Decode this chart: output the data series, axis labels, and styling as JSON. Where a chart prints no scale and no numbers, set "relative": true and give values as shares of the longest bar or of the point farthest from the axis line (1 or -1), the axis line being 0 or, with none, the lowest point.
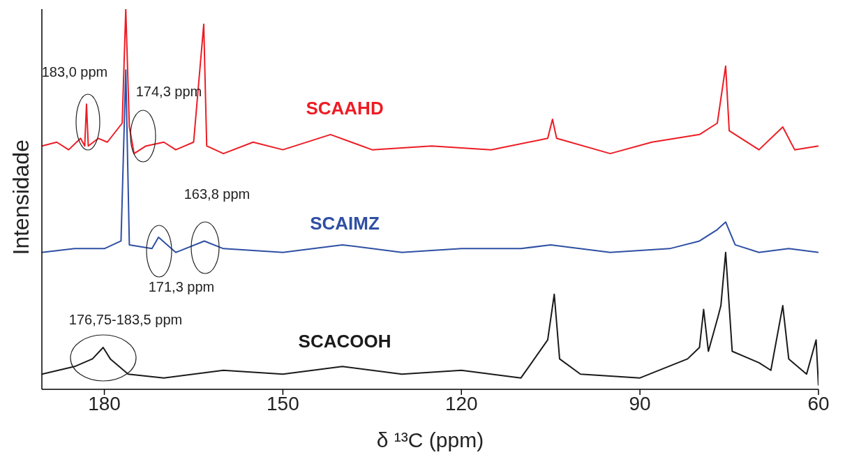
{
  "chart_data": {
    "type": "line",
    "xlabel": "δ ¹³C (ppm)",
    "ylabel": "Intensidade",
    "relative": true,
    "xlim": [
      190.5,
      60
    ],
    "xticks": [
      180,
      150,
      120,
      90,
      60
    ],
    "grid": false,
    "legend": false,
    "marker": "none",
    "line_style": "solid",
    "series": [
      {
        "name": "SCAAHD",
        "color": "#ed1c24",
        "x": [
          190.5,
          188,
          186,
          184,
          183.3,
          183.0,
          182.7,
          181,
          179.5,
          177,
          176.4,
          175.8,
          175,
          173,
          170,
          168,
          165,
          163.3,
          162.8,
          160,
          155,
          150,
          142,
          135,
          125,
          115,
          105.5,
          104.7,
          104,
          95,
          88,
          80,
          77,
          75.6,
          75,
          70,
          66,
          64,
          60
        ],
        "values": [
          0.64,
          0.65,
          0.63,
          0.66,
          0.64,
          0.75,
          0.64,
          0.66,
          0.65,
          0.7,
          1.0,
          0.69,
          0.62,
          0.64,
          0.65,
          0.63,
          0.65,
          0.96,
          0.64,
          0.62,
          0.65,
          0.63,
          0.67,
          0.63,
          0.64,
          0.63,
          0.66,
          0.71,
          0.66,
          0.62,
          0.65,
          0.67,
          0.7,
          0.85,
          0.68,
          0.63,
          0.69,
          0.63,
          0.64
        ]
      },
      {
        "name": "SCAIMZ",
        "color": "#2e4fa3",
        "x": [
          190.5,
          185,
          180,
          177.2,
          176.4,
          175.8,
          172,
          170.9,
          168,
          163.2,
          160,
          150,
          140,
          130,
          120,
          110,
          105,
          95,
          85,
          80,
          77,
          75.6,
          74,
          70,
          65,
          60
        ],
        "values": [
          0.36,
          0.37,
          0.37,
          0.39,
          0.84,
          0.38,
          0.37,
          0.4,
          0.36,
          0.39,
          0.37,
          0.36,
          0.38,
          0.36,
          0.37,
          0.37,
          0.38,
          0.36,
          0.37,
          0.39,
          0.42,
          0.44,
          0.38,
          0.36,
          0.37,
          0.36
        ]
      },
      {
        "name": "SCACOOH",
        "color": "#1a1a1a",
        "x": [
          190.5,
          185,
          182,
          180.2,
          179,
          176,
          170,
          160,
          150,
          140,
          130,
          120,
          110,
          105.5,
          104.4,
          103.5,
          100,
          90,
          82,
          80,
          79.3,
          78.5,
          76.9,
          76.4,
          75.6,
          74.5,
          70,
          68,
          66,
          65,
          62,
          60.4,
          60
        ],
        "values": [
          0.04,
          0.06,
          0.08,
          0.11,
          0.08,
          0.04,
          0.03,
          0.05,
          0.04,
          0.06,
          0.04,
          0.05,
          0.03,
          0.13,
          0.25,
          0.08,
          0.04,
          0.03,
          0.08,
          0.11,
          0.21,
          0.1,
          0.19,
          0.22,
          0.36,
          0.1,
          0.07,
          0.05,
          0.22,
          0.08,
          0.04,
          0.13,
          0.01
        ]
      }
    ],
    "annotations": [
      "183,0 ppm",
      "174,3 ppm",
      "163,8 ppm",
      "171,3 ppm",
      "176,75-183,5 ppm"
    ]
  }
}
